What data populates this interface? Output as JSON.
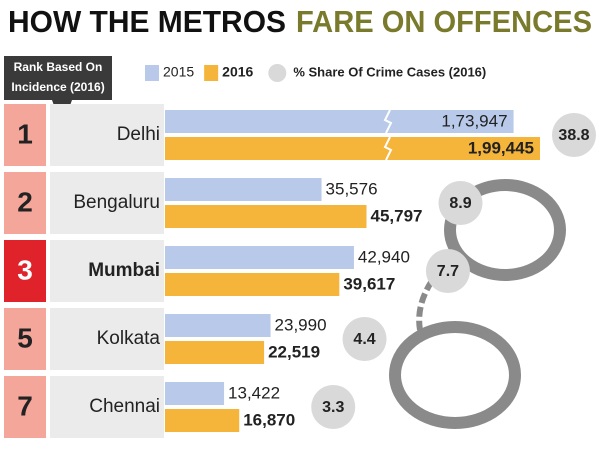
{
  "chart_data": {
    "type": "bar",
    "title": "HOW THE METROS",
    "title_highlight": "FARE ON OFFENCES",
    "rank_header": "Rank Based On Incidence (2016)",
    "categories": [
      "Delhi",
      "Bengaluru",
      "Mumbai",
      "Kolkata",
      "Chennai"
    ],
    "ranks": [
      1,
      2,
      3,
      5,
      7
    ],
    "highlight": "Mumbai",
    "series": [
      {
        "name": "2015",
        "color": "#b9c9ea",
        "values": [
          173947,
          35576,
          42940,
          23990,
          13422
        ],
        "value_labels": [
          "1,73,947",
          "35,576",
          "42,940",
          "23,990",
          "13,422"
        ]
      },
      {
        "name": "2016",
        "color": "#f5b43a",
        "values": [
          199445,
          45797,
          39617,
          22519,
          16870
        ],
        "value_labels": [
          "1,99,445",
          "45,797",
          "39,617",
          "22,519",
          "16,870"
        ]
      }
    ],
    "share": {
      "name": "% Share Of Crime Cases (2016)",
      "color": "#d9d9d9",
      "values": [
        38.8,
        8.9,
        7.7,
        4.4,
        3.3
      ]
    }
  }
}
